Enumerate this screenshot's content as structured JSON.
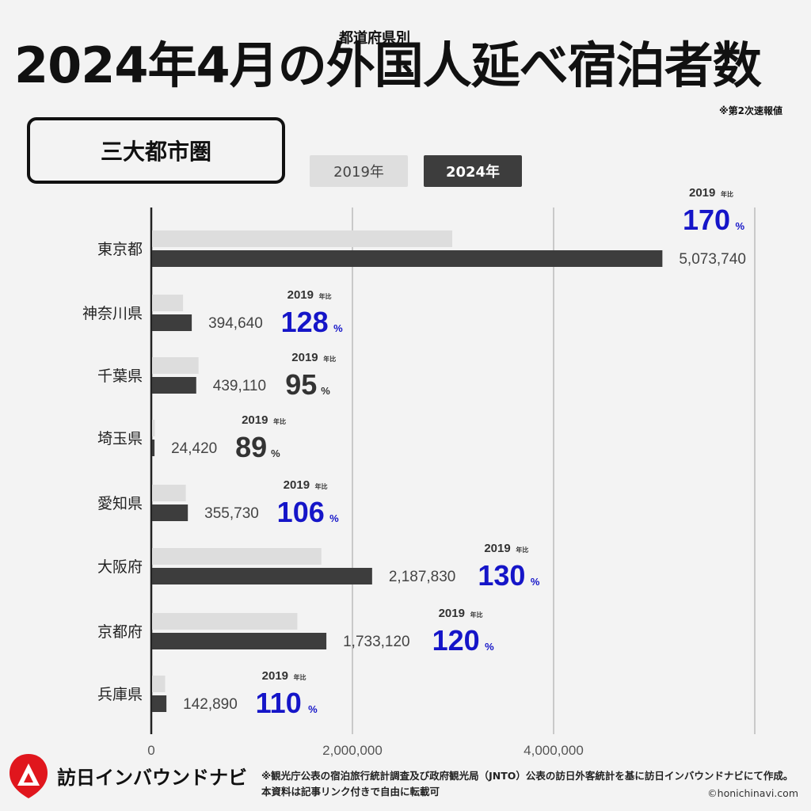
{
  "header": {
    "title": "2024年4月の外国人延べ宿泊者数",
    "super": "都道府県別",
    "note": "※第2次速報値"
  },
  "region": "三大都市圏",
  "legend": {
    "y2019": "2019年",
    "y2024": "2024年"
  },
  "colors": {
    "bar_2019": "#dddddd",
    "bar_2024": "#3d3d3d",
    "ratio_up": "#1515c8",
    "ratio_down": "#333333",
    "background": "#f3f3f3"
  },
  "ratio_prefix": "2019",
  "ratio_suffix": "年比",
  "pct_sign": "%",
  "chart_data": {
    "type": "bar",
    "orientation": "horizontal",
    "categories": [
      "東京都",
      "神奈川県",
      "千葉県",
      "埼玉県",
      "愛知県",
      "大阪府",
      "京都府",
      "兵庫県"
    ],
    "series": [
      {
        "name": "2019年",
        "values": [
          2984550,
          308313,
          462221,
          27438,
          335594,
          1682946,
          1444267,
          129900
        ]
      },
      {
        "name": "2024年",
        "values": [
          5073740,
          394640,
          439110,
          24420,
          355730,
          2187830,
          1733120,
          142890
        ]
      }
    ],
    "value_labels": [
      "5,073,740",
      "394,640",
      "439,110",
      "24,420",
      "355,730",
      "2,187,830",
      "1,733,120",
      "142,890"
    ],
    "ratios": [
      170,
      128,
      95,
      89,
      106,
      130,
      120,
      110
    ],
    "xlim": [
      0,
      6000000
    ],
    "xticks": [
      0,
      2000000,
      4000000
    ],
    "xtick_labels": [
      "0",
      "2,000,000",
      "4,000,000"
    ],
    "grid": true
  },
  "footer": {
    "brand": "訪日インバウンドナビ",
    "note": "※観光庁公表の宿泊旅行統計調査及び政府観光局（JNTO）公表の訪日外客統計を基に訪日インバウンドナビにて作成。本資料は記事リンク付きで自由に転載可",
    "copyright": "©honichinavi.com"
  }
}
